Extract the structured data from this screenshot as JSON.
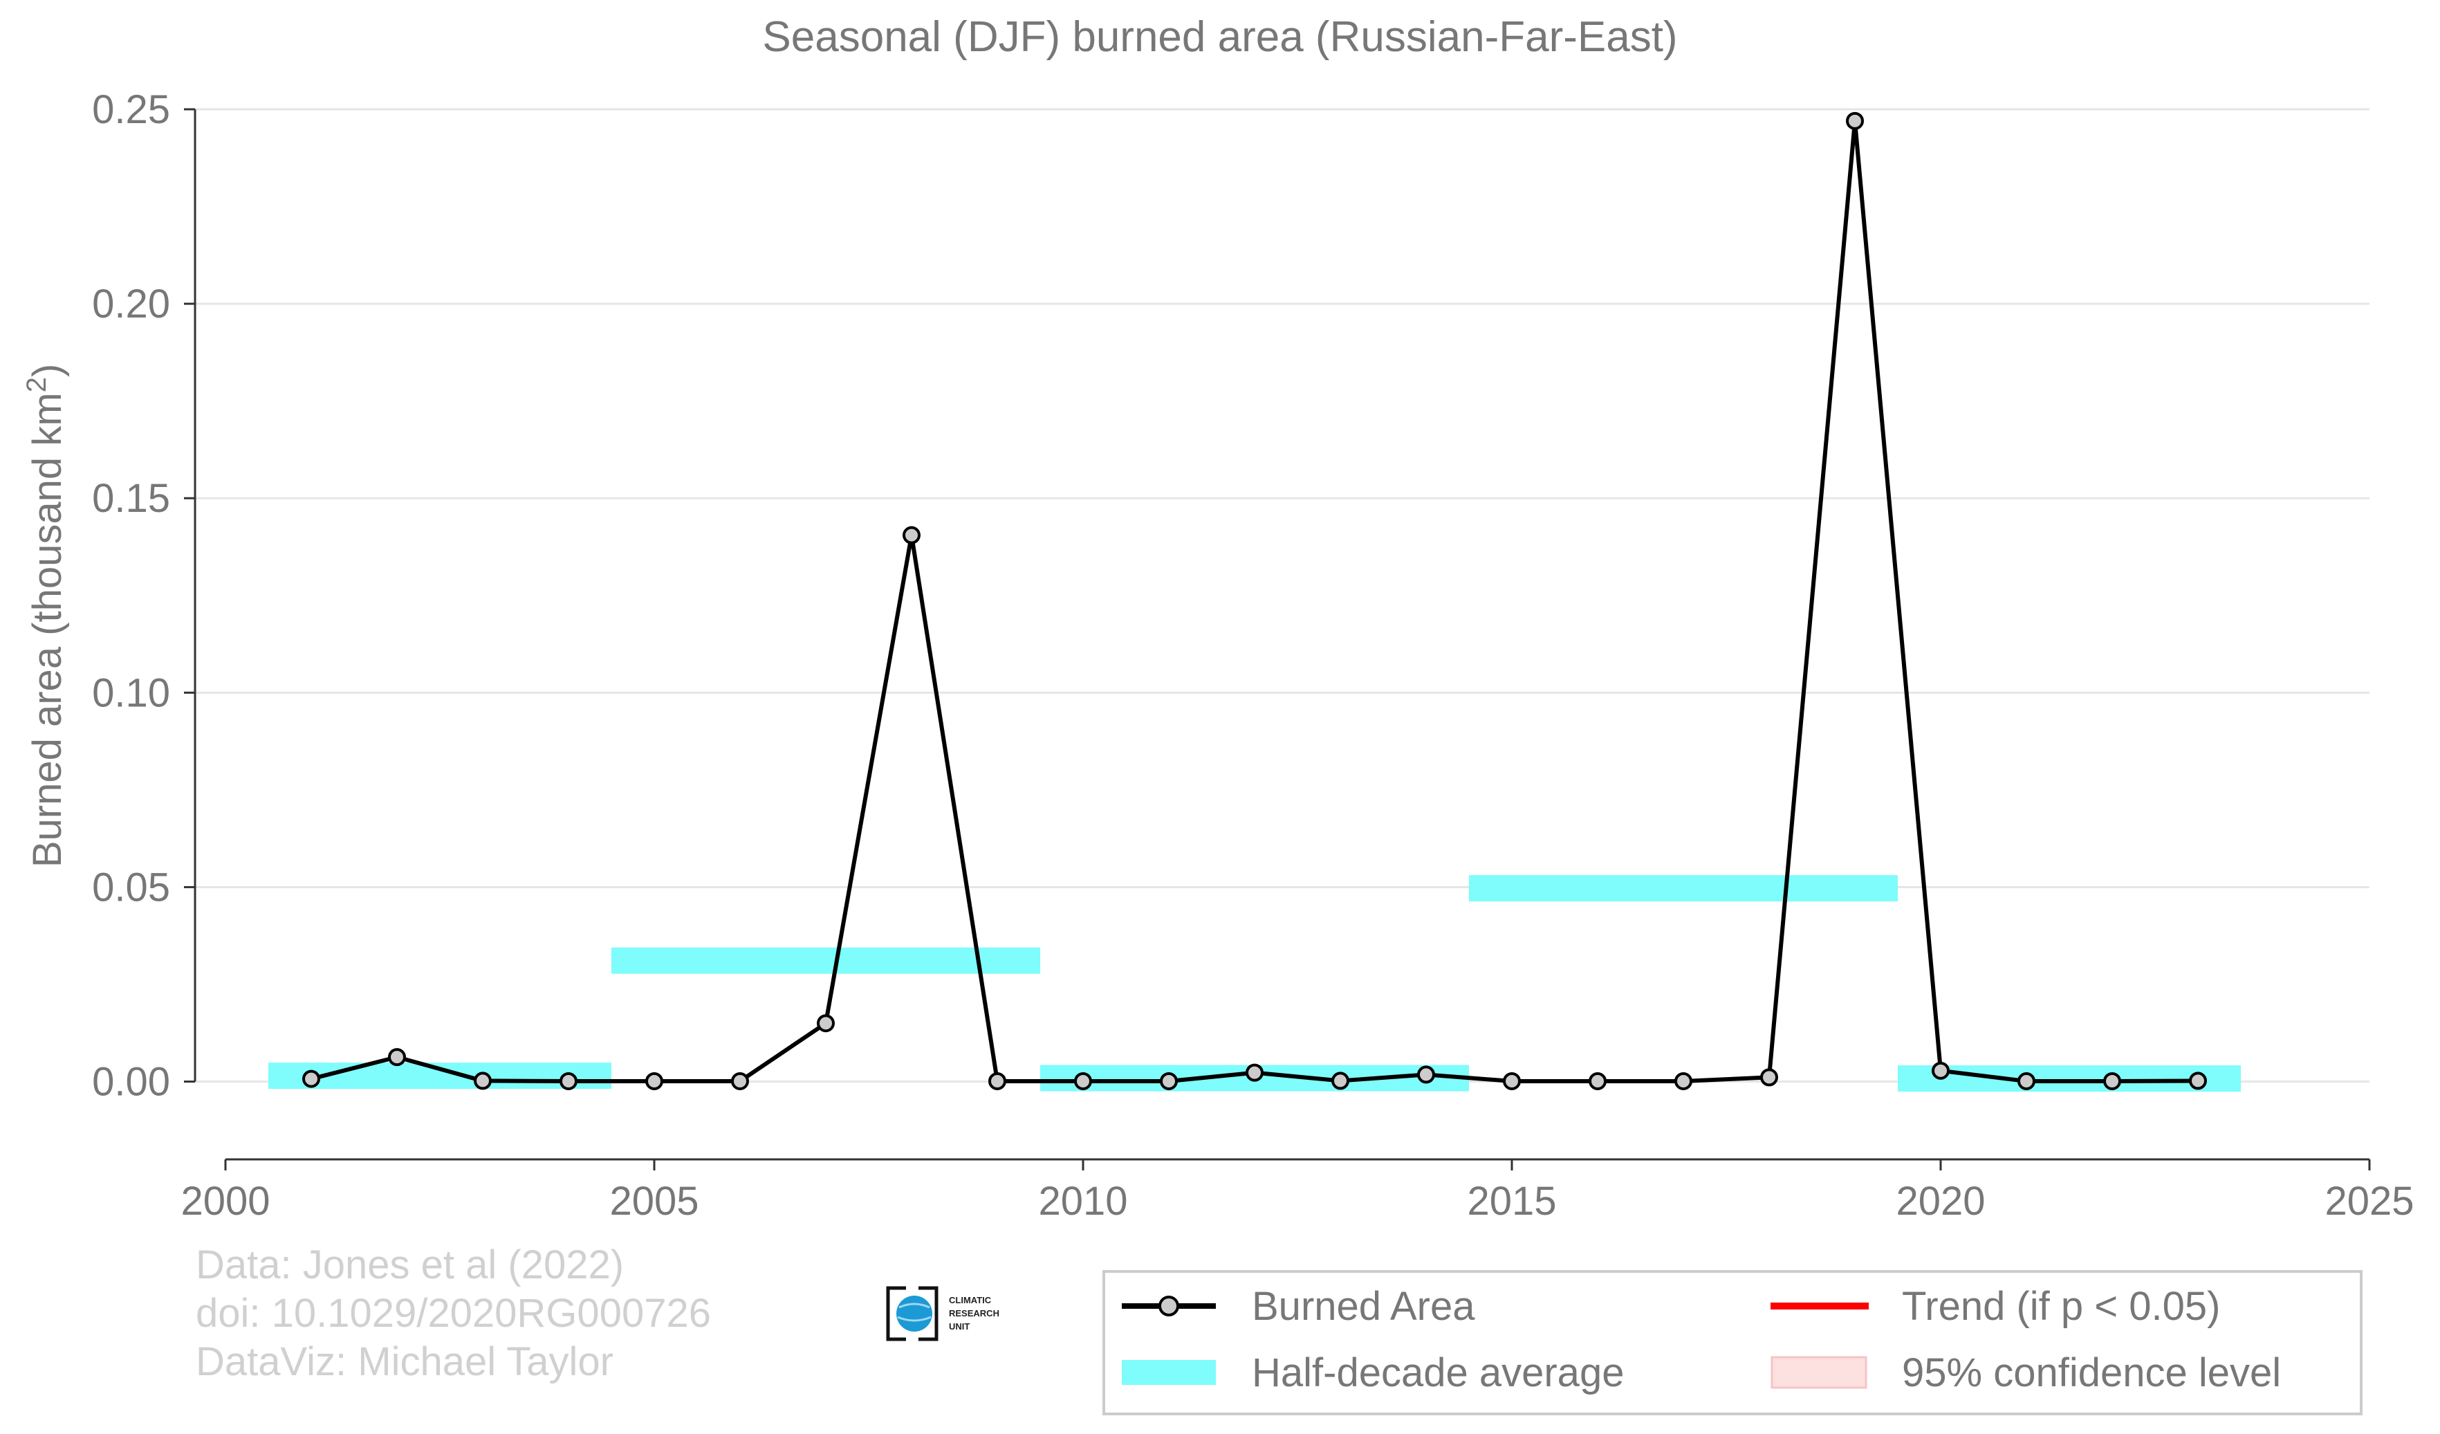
{
  "chart_data": {
    "type": "line",
    "title": "Seasonal (DJF) burned area (Russian-Far-East)",
    "ylabel": "Burned area (thousand km",
    "ylabel_sup": "2",
    "ylabel_end": ")",
    "xlim": [
      2000,
      2025
    ],
    "ylim": [
      -0.02,
      0.25
    ],
    "x_ticks": [
      2000,
      2005,
      2010,
      2015,
      2020,
      2025
    ],
    "x_tick_labels": [
      "2000",
      "2005",
      "2010",
      "2015",
      "2020",
      "2025"
    ],
    "y_ticks": [
      0.0,
      0.05,
      0.1,
      0.15,
      0.2,
      0.25
    ],
    "y_tick_labels": [
      "0.00",
      "0.05",
      "0.10",
      "0.15",
      "0.20",
      "0.25"
    ],
    "grid": "horizontal",
    "series": [
      {
        "name": "Burned Area",
        "color": "#000000",
        "marker_fill": "#cccccc",
        "x": [
          2001,
          2002,
          2003,
          2004,
          2005,
          2006,
          2007,
          2008,
          2009,
          2010,
          2011,
          2012,
          2013,
          2014,
          2015,
          2016,
          2017,
          2018,
          2019,
          2020,
          2021,
          2022,
          2023
        ],
        "y": [
          0.0007,
          0.0063,
          0.0002,
          0.0001,
          0.0001,
          0.0001,
          0.015,
          0.1405,
          0.0001,
          0.0001,
          0.0001,
          0.0023,
          0.0002,
          0.0018,
          0.0001,
          0.0001,
          0.0001,
          0.0011,
          0.247,
          0.0028,
          0.0001,
          0.0001,
          0.0002
        ]
      }
    ],
    "half_decade_average": {
      "name": "Half-decade average",
      "color": "#7ffcfc",
      "segments": [
        {
          "x_start": 2000.5,
          "x_end": 2004.5,
          "y": 0.0015
        },
        {
          "x_start": 2004.5,
          "x_end": 2009.5,
          "y": 0.0311
        },
        {
          "x_start": 2009.5,
          "x_end": 2014.5,
          "y": 0.0009
        },
        {
          "x_start": 2014.5,
          "x_end": 2019.5,
          "y": 0.0497
        },
        {
          "x_start": 2019.5,
          "x_end": 2023.5,
          "y": 0.0008
        }
      ]
    },
    "legend": {
      "placement": "bottom-right",
      "entries": [
        {
          "label": "Burned Area",
          "kind": "line-marker",
          "color": "#000000"
        },
        {
          "label": "Trend (if p < 0.05)",
          "kind": "line",
          "color": "#ff0000"
        },
        {
          "label": "Half-decade average",
          "kind": "band",
          "color": "#7ffcfc"
        },
        {
          "label": "95% confidence level",
          "kind": "band",
          "color": "#fde0e0"
        }
      ]
    },
    "credits": [
      "Data: Jones et al (2022)",
      "doi: 10.1029/2020RG000726",
      "DataViz: Michael Taylor"
    ],
    "logo_text": [
      "CLIMATIC",
      "RESEARCH",
      "UNIT"
    ]
  }
}
